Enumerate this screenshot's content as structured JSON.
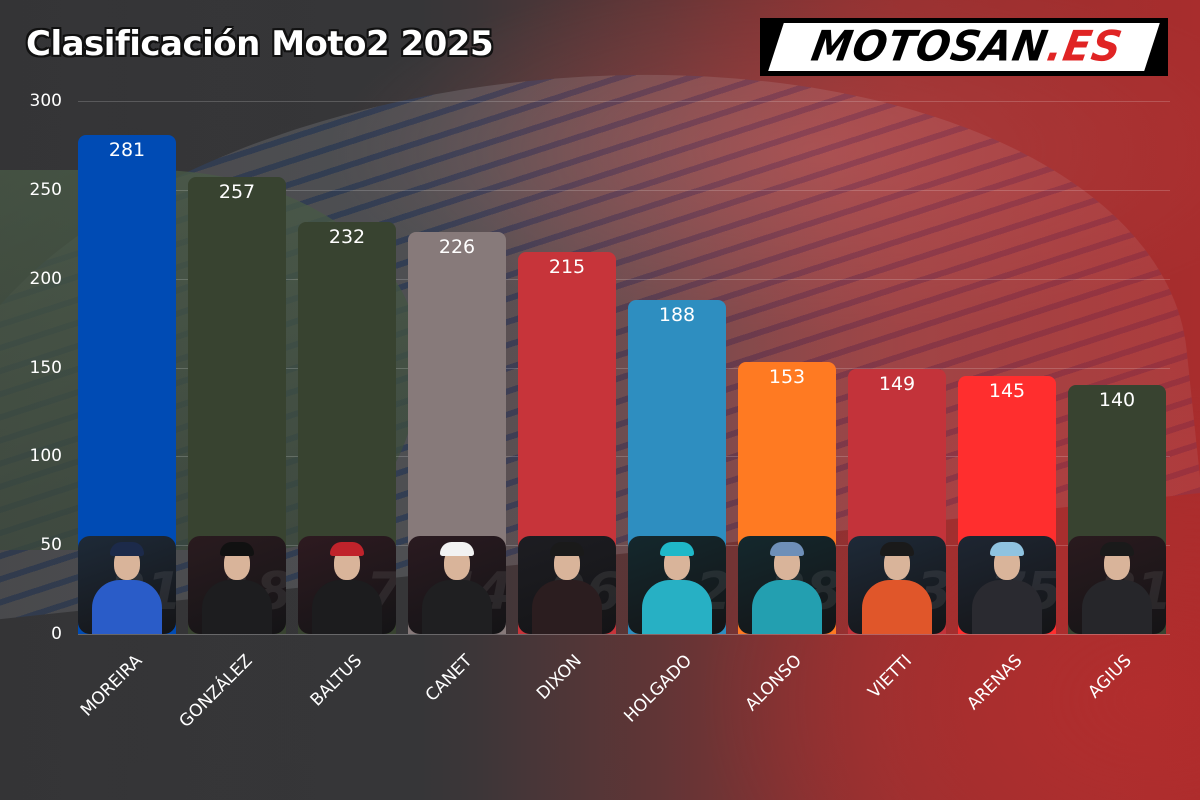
{
  "header": {
    "title": "Clasificación Moto2 2025",
    "logo_main": "MOTOSAN",
    "logo_ext": ".ES"
  },
  "colors": {
    "moreira": "#004bb4",
    "gonzalez": "#384330",
    "baltus": "#384330",
    "canet": "#877a7a",
    "dixon": "#c7343a",
    "holgado": "#2e8ec0",
    "alonso": "#ff7a22",
    "vietti": "#c3333a",
    "arenas": "#ff2e2e",
    "agius": "#384330"
  },
  "chart_data": {
    "type": "bar",
    "title": "Clasificación Moto2 2025",
    "xlabel": "",
    "ylabel": "",
    "categories": [
      "MOREIRA",
      "GONZÁLEZ",
      "BALTUS",
      "CANET",
      "DIXON",
      "HOLGADO",
      "ALONSO",
      "VIETTI",
      "ARENAS",
      "AGIUS"
    ],
    "values": [
      281,
      257,
      232,
      226,
      215,
      188,
      153,
      149,
      145,
      140
    ],
    "bar_colors": [
      "#004bb4",
      "#384330",
      "#384330",
      "#877a7a",
      "#c7343a",
      "#2e8ec0",
      "#ff7a22",
      "#c3333a",
      "#ff2e2e",
      "#384330"
    ],
    "ylim": [
      0,
      300
    ],
    "yticks": [
      0,
      50,
      100,
      150,
      200,
      250,
      300
    ],
    "grid": true,
    "legend": "none",
    "data_labels": true,
    "rider_photos": true,
    "x_label_rotation": -45
  },
  "yaxis": {
    "ticks": [
      "0",
      "50",
      "100",
      "150",
      "200",
      "250",
      "300"
    ]
  },
  "bars": [
    {
      "name": "MOREIRA",
      "value": "281",
      "photo_bg": "#1e2a38",
      "cap": "#1c2a4a",
      "suit": "#2a5cc8",
      "num": "21"
    },
    {
      "name": "GONZÁLEZ",
      "value": "257",
      "photo_bg": "#2a1b1f",
      "cap": "#111111",
      "suit": "#1d1d1f",
      "num": "18"
    },
    {
      "name": "BALTUS",
      "value": "232",
      "photo_bg": "#2e1a20",
      "cap": "#c0232b",
      "suit": "#1c1c1e",
      "num": "7"
    },
    {
      "name": "CANET",
      "value": "226",
      "photo_bg": "#2a1a20",
      "cap": "#f2f2f2",
      "suit": "#1f1f21",
      "num": "44"
    },
    {
      "name": "DIXON",
      "value": "215",
      "photo_bg": "#1d1d22",
      "cap": "#1a1a1a",
      "suit": "#2b1d1f",
      "num": "96"
    },
    {
      "name": "HOLGADO",
      "value": "188",
      "photo_bg": "#14282d",
      "cap": "#1fb8c8",
      "suit": "#27b0c4",
      "num": "12"
    },
    {
      "name": "ALONSO",
      "value": "153",
      "photo_bg": "#14282d",
      "cap": "#6e8fb8",
      "suit": "#239fb0",
      "num": "28"
    },
    {
      "name": "VIETTI",
      "value": "149",
      "photo_bg": "#1e2a38",
      "cap": "#1a1a1a",
      "suit": "#e0562a",
      "num": "13"
    },
    {
      "name": "ARENAS",
      "value": "145",
      "photo_bg": "#1e2632",
      "cap": "#8fc3e0",
      "suit": "#2a2a30",
      "num": "75"
    },
    {
      "name": "AGIUS",
      "value": "140",
      "photo_bg": "#2a1a1e",
      "cap": "#1a1a1a",
      "suit": "#26262a",
      "num": "81"
    }
  ]
}
